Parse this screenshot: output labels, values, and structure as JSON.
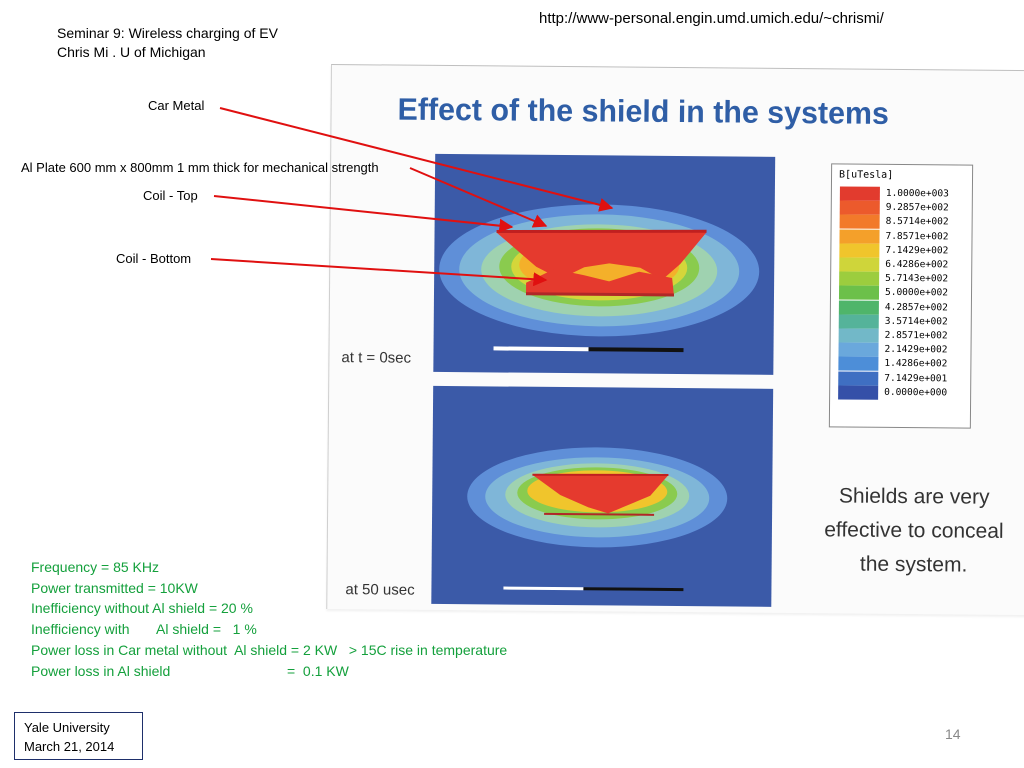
{
  "header": {
    "url": "http://www-personal.engin.umd.umich.edu/~chrismi/",
    "seminar_line": "Seminar 9: Wireless charging of EV",
    "author_line": "Chris Mi . U of Michigan"
  },
  "annotations": {
    "car_metal": "Car Metal",
    "al_plate": "Al Plate 600 mm x 800mm 1 mm thick for mechanical strength",
    "coil_top": "Coil - Top",
    "coil_bottom": "Coil - Bottom",
    "arrow_color": "#e01010"
  },
  "slide": {
    "title": "Effect of the shield in the systems",
    "plot1_label": "at t = 0sec",
    "plot2_label": "at 50 usec",
    "legend_title": "B[uTesla]",
    "legend": [
      {
        "value": "1.0000e+003",
        "color": "#e23b2e"
      },
      {
        "value": "9.2857e+002",
        "color": "#ec5a2c"
      },
      {
        "value": "8.5714e+002",
        "color": "#f27a2a"
      },
      {
        "value": "7.8571e+002",
        "color": "#f4a02a"
      },
      {
        "value": "7.1429e+002",
        "color": "#f0c52c"
      },
      {
        "value": "6.4286e+002",
        "color": "#cfd53a"
      },
      {
        "value": "5.7143e+002",
        "color": "#9ccd3e"
      },
      {
        "value": "5.0000e+002",
        "color": "#6cc04a"
      },
      {
        "value": "4.2857e+002",
        "color": "#4fb56a"
      },
      {
        "value": "3.5714e+002",
        "color": "#55b39a"
      },
      {
        "value": "2.8571e+002",
        "color": "#72b8c8"
      },
      {
        "value": "2.1429e+002",
        "color": "#6aa8dc"
      },
      {
        "value": "1.4286e+002",
        "color": "#4d8ed8"
      },
      {
        "value": "7.1429e+001",
        "color": "#3f6fc2"
      },
      {
        "value": "0.0000e+000",
        "color": "#3550a8"
      }
    ],
    "shield_note": "Shields are very effective to conceal the system."
  },
  "specs": {
    "line1": "Frequency = 85 KHz",
    "line2": "Power transmitted = 10KW",
    "line3": "Inefficiency without Al shield = 20 %",
    "line4": "Inefficiency with       Al shield =   1 %",
    "line5": "Power loss in Car metal without  Al shield = 2 KW   > 15C rise in temperature",
    "line6": "Power loss in Al shield                              =  0.1 KW"
  },
  "footer": {
    "institution": "Yale University",
    "date": "March  21, 2014",
    "page_number": "14"
  }
}
